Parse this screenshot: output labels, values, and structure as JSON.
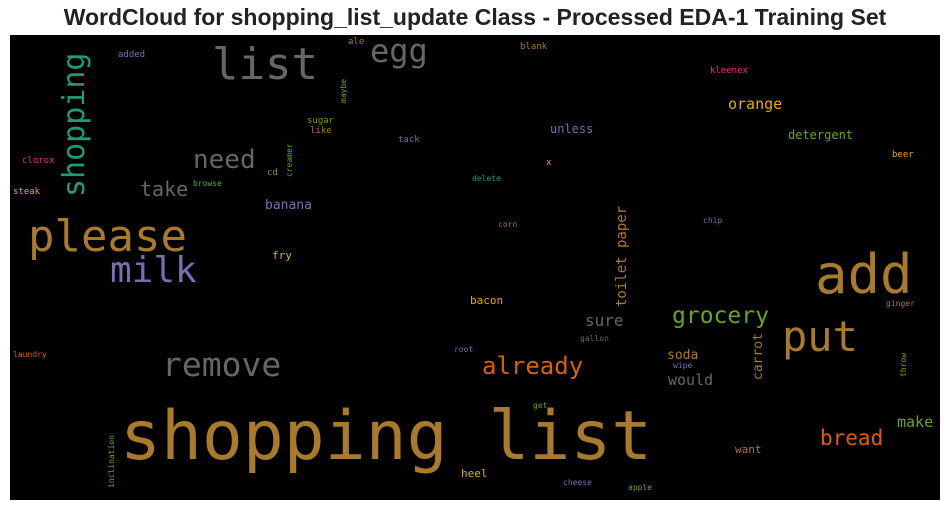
{
  "chart_data": {
    "type": "wordcloud",
    "title": "WordCloud for shopping_list_update Class - Processed EDA-1 Training Set",
    "background": "#000000",
    "words": [
      {
        "text": "shopping list",
        "color": "#a87a2a"
      },
      {
        "text": "add",
        "color": "#a87a2a"
      },
      {
        "text": "please",
        "color": "#a87a2a"
      },
      {
        "text": "list",
        "color": "#666666"
      },
      {
        "text": "shopping",
        "color": "#1b9e77"
      },
      {
        "text": "put",
        "color": "#a87a2a"
      },
      {
        "text": "milk",
        "color": "#7570b3"
      },
      {
        "text": "remove",
        "color": "#666666"
      },
      {
        "text": "egg",
        "color": "#666666"
      },
      {
        "text": "need",
        "color": "#666666"
      },
      {
        "text": "already",
        "color": "#d95f02"
      },
      {
        "text": "grocery",
        "color": "#66a61e"
      },
      {
        "text": "bread",
        "color": "#d95f02"
      },
      {
        "text": "take",
        "color": "#666666"
      },
      {
        "text": "toilet paper",
        "color": "#a87a2a"
      },
      {
        "text": "orange",
        "color": "#e6ab02"
      },
      {
        "text": "sure",
        "color": "#666666"
      },
      {
        "text": "would",
        "color": "#666666"
      },
      {
        "text": "make",
        "color": "#66a61e"
      },
      {
        "text": "carrot",
        "color": "#a87a2a"
      },
      {
        "text": "banana",
        "color": "#7570b3"
      },
      {
        "text": "soda",
        "color": "#a87a2a"
      },
      {
        "text": "unless",
        "color": "#7570b3"
      },
      {
        "text": "detergent",
        "color": "#66a61e"
      },
      {
        "text": "bacon",
        "color": "#e6ab02"
      },
      {
        "text": "fry",
        "color": "#e6ab02"
      },
      {
        "text": "want",
        "color": "#a87a2a"
      },
      {
        "text": "heel",
        "color": "#e6ab02"
      },
      {
        "text": "kleenex",
        "color": "#e7298a"
      },
      {
        "text": "beer",
        "color": "#e6ab02"
      },
      {
        "text": "clorox",
        "color": "#e7298a"
      },
      {
        "text": "steak",
        "color": "#e6ab02"
      },
      {
        "text": "added",
        "color": "#7570b3"
      },
      {
        "text": "ale",
        "color": "#a87a2a"
      },
      {
        "text": "blank",
        "color": "#a87a2a"
      },
      {
        "text": "maybe",
        "color": "#66a61e"
      },
      {
        "text": "sugar",
        "color": "#66a61e"
      },
      {
        "text": "like",
        "color": "#a87a2a"
      },
      {
        "text": "tack",
        "color": "#7570b3"
      },
      {
        "text": "x",
        "color": "#e6ab02"
      },
      {
        "text": "creamer",
        "color": "#66a61e"
      },
      {
        "text": "cd",
        "color": "#66a61e"
      },
      {
        "text": "browse",
        "color": "#66a61e"
      },
      {
        "text": "delete",
        "color": "#1b9e77"
      },
      {
        "text": "corn",
        "color": "#a87a2a"
      },
      {
        "text": "chip",
        "color": "#7570b3"
      },
      {
        "text": "ginger",
        "color": "#a87a2a"
      },
      {
        "text": "throw",
        "color": "#66a61e"
      },
      {
        "text": "laundry",
        "color": "#d95f02"
      },
      {
        "text": "root",
        "color": "#7570b3"
      },
      {
        "text": "gallon",
        "color": "#666666"
      },
      {
        "text": "wipe",
        "color": "#7570b3"
      },
      {
        "text": "get",
        "color": "#66a61e"
      },
      {
        "text": "inclination",
        "color": "#66a61e"
      },
      {
        "text": "cheese",
        "color": "#7570b3"
      },
      {
        "text": "apple",
        "color": "#66a61e"
      }
    ]
  }
}
